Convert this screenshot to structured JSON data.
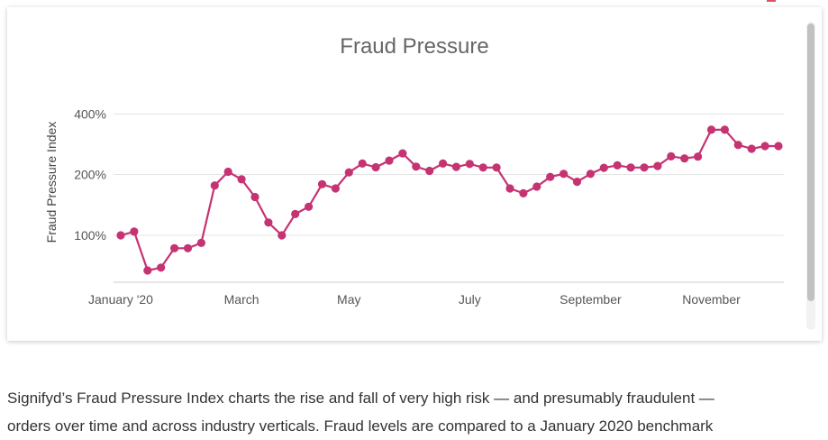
{
  "chart_data": {
    "type": "line",
    "title": "Fraud Pressure",
    "ylabel": "Fraud Pressure Index",
    "xlabel": "",
    "x_ticks": [
      {
        "label": "January '20",
        "index": 0
      },
      {
        "label": "March",
        "index": 9
      },
      {
        "label": "May",
        "index": 17
      },
      {
        "label": "July",
        "index": 26
      },
      {
        "label": "September",
        "index": 35
      },
      {
        "label": "November",
        "index": 44
      }
    ],
    "y_ticks": [
      {
        "label": "100%",
        "value": 100
      },
      {
        "label": "200%",
        "value": 200
      },
      {
        "label": "400%",
        "value": 400
      }
    ],
    "y_min": 20,
    "y_max": 500,
    "grid": true,
    "color": "#c53372",
    "series": [
      {
        "name": "",
        "values": [
          100,
          106,
          40,
          45,
          78,
          78,
          87,
          182,
          209,
          192,
          163,
          121,
          100,
          135,
          147,
          184,
          177,
          207,
          236,
          224,
          246,
          270,
          226,
          212,
          236,
          225,
          235,
          223,
          223,
          177,
          169,
          180,
          196,
          202,
          188,
          202,
          222,
          230,
          223,
          223,
          228,
          260,
          253,
          259,
          348,
          348,
          298,
          285,
          294,
          294
        ]
      }
    ]
  },
  "caption": {
    "line1": "Signifyd’s Fraud Pressure Index charts the rise and fall of very high risk — and presumably fraudulent —",
    "line2": "orders over time and across industry verticals. Fraud levels are compared to a January 2020 benchmark"
  }
}
